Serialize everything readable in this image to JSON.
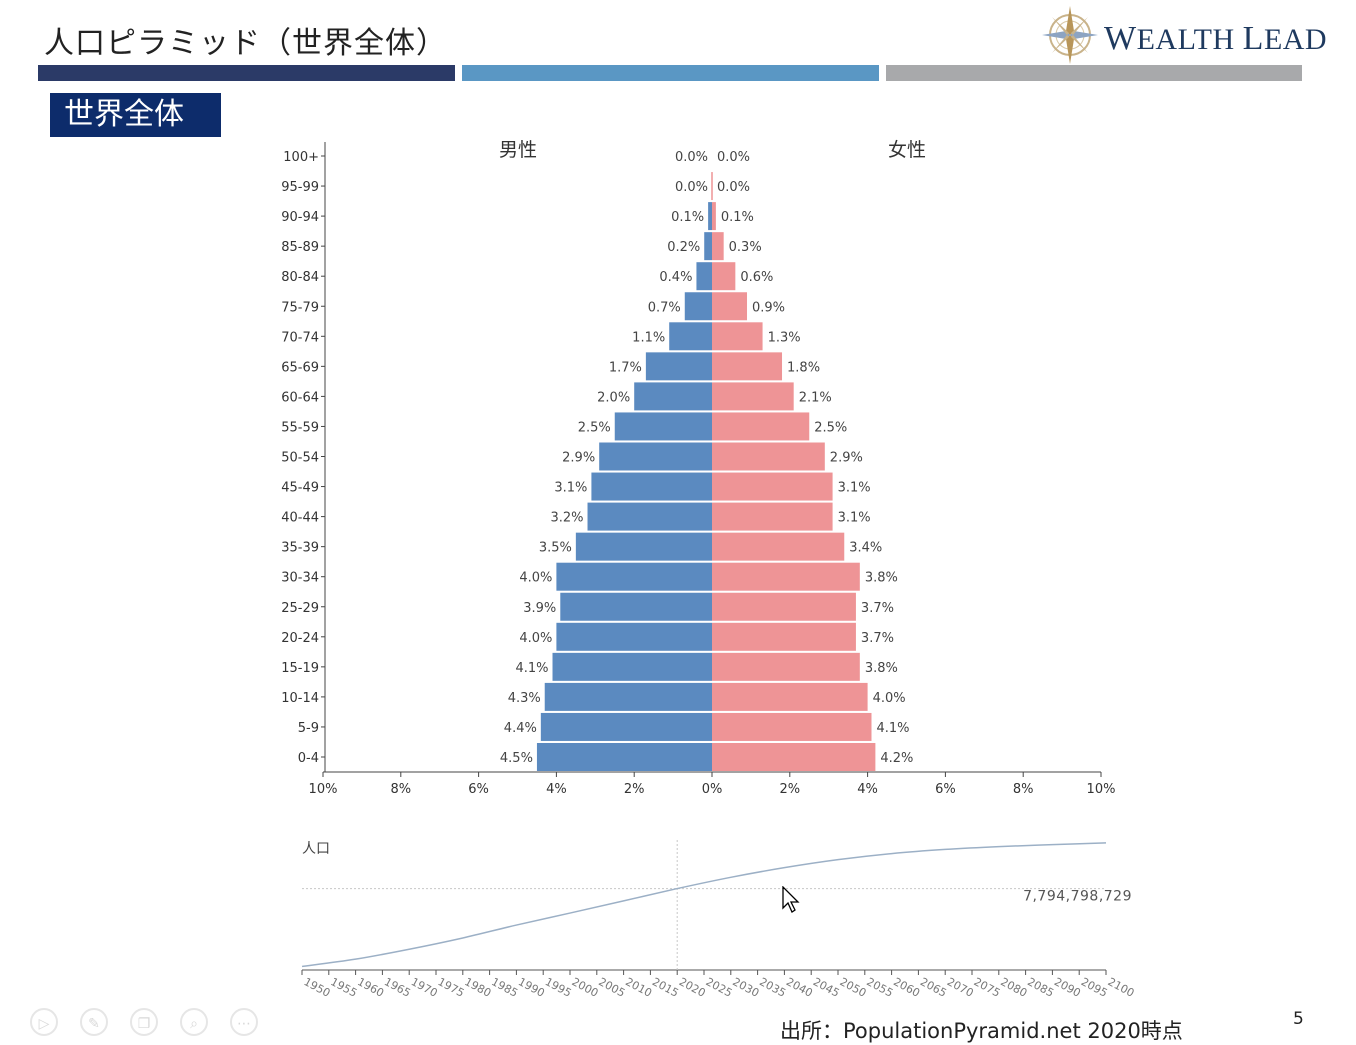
{
  "header": {
    "title": "人口ピラミッド（世界全体）",
    "logo_text_a": "W",
    "logo_text_b": "EALTH",
    "logo_text_c": "L",
    "logo_text_d": "EAD",
    "stripe_colors": [
      "#2b3a67",
      "#5a97c4",
      "#a8a9ab"
    ]
  },
  "section_label": "世界全体",
  "chart_data": [
    {
      "type": "bar",
      "orientation": "horizontal-diverging",
      "title": "",
      "categories": [
        "100+",
        "95-99",
        "90-94",
        "85-89",
        "80-84",
        "75-79",
        "70-74",
        "65-69",
        "60-64",
        "55-59",
        "50-54",
        "45-49",
        "40-44",
        "35-39",
        "30-34",
        "25-29",
        "20-24",
        "15-19",
        "10-14",
        "5-9",
        "0-4"
      ],
      "series": [
        {
          "name": "男性",
          "color": "#5b8ac0",
          "values": [
            0.0,
            0.0,
            0.1,
            0.2,
            0.4,
            0.7,
            1.1,
            1.7,
            2.0,
            2.5,
            2.9,
            3.1,
            3.2,
            3.5,
            4.0,
            3.9,
            4.0,
            4.1,
            4.3,
            4.4,
            4.5
          ],
          "labels": [
            "0.0%",
            "0.0%",
            "0.1%",
            "0.2%",
            "0.4%",
            "0.7%",
            "1.1%",
            "1.7%",
            "2.0%",
            "2.5%",
            "2.9%",
            "3.1%",
            "3.2%",
            "3.5%",
            "4.0%",
            "3.9%",
            "4.0%",
            "4.1%",
            "4.3%",
            "4.4%",
            "4.5%"
          ]
        },
        {
          "name": "女性",
          "color": "#ee9496",
          "values": [
            0.0,
            0.0,
            0.1,
            0.3,
            0.6,
            0.9,
            1.3,
            1.8,
            2.1,
            2.5,
            2.9,
            3.1,
            3.1,
            3.4,
            3.8,
            3.7,
            3.7,
            3.8,
            4.0,
            4.1,
            4.2
          ],
          "labels": [
            "0.0%",
            "0.0%",
            "0.1%",
            "0.3%",
            "0.6%",
            "0.9%",
            "1.3%",
            "1.8%",
            "2.1%",
            "2.5%",
            "2.9%",
            "3.1%",
            "3.1%",
            "3.4%",
            "3.8%",
            "3.7%",
            "3.7%",
            "3.8%",
            "4.0%",
            "4.1%",
            "4.2%"
          ]
        }
      ],
      "x_ticks": [
        "10%",
        "8%",
        "6%",
        "4%",
        "2%",
        "0%",
        "2%",
        "4%",
        "6%",
        "8%",
        "10%"
      ],
      "xlim": [
        -10,
        10
      ]
    },
    {
      "type": "line",
      "title": "",
      "ylabel": "人口",
      "x_ticks": [
        "1950",
        "1955",
        "1960",
        "1965",
        "1970",
        "1975",
        "1980",
        "1985",
        "1990",
        "1995",
        "2000",
        "2005",
        "2010",
        "2015",
        "2020",
        "2025",
        "2030",
        "2035",
        "2040",
        "2045",
        "2050",
        "2055",
        "2060",
        "2065",
        "2070",
        "2075",
        "2080",
        "2085",
        "2090",
        "2095",
        "2100"
      ],
      "xlim": [
        1950,
        2100
      ],
      "x": [
        1950,
        1960,
        1970,
        1980,
        1990,
        2000,
        2010,
        2020,
        2030,
        2040,
        2050,
        2060,
        2070,
        2080,
        2090,
        2100
      ],
      "y": [
        2.54,
        3.03,
        3.7,
        4.46,
        5.33,
        6.14,
        6.96,
        7.79,
        8.55,
        9.2,
        9.74,
        10.15,
        10.43,
        10.62,
        10.75,
        10.87
      ],
      "ylim": [
        2.3,
        11.2
      ],
      "marker_year": 2020,
      "marker_value": "7,794,798,729",
      "color": "#9cb0c6"
    }
  ],
  "footer": {
    "source": "出所：PopulationPyramid.net 2020時点",
    "page_number": "5"
  },
  "toolbar": {
    "icons": [
      "play-icon",
      "pen-icon",
      "copy-icon",
      "zoom-icon",
      "more-icon"
    ],
    "symbols": [
      "▷",
      "✎",
      "❐",
      "⌕",
      "⋯"
    ]
  }
}
